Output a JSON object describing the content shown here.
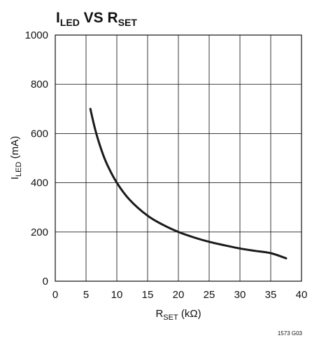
{
  "chart_data": {
    "type": "line",
    "title": {
      "main": "I",
      "main_sub": "LED",
      "mid": " VS ",
      "end": "R",
      "end_sub": "SET"
    },
    "xlabel": {
      "main": "R",
      "sub": "SET",
      "unit": " (kΩ)"
    },
    "ylabel": {
      "main": "I",
      "sub": "LED",
      "unit": " (mA)"
    },
    "xlim": [
      0,
      40
    ],
    "ylim": [
      0,
      1000
    ],
    "xticks": [
      0,
      5,
      10,
      15,
      20,
      25,
      30,
      35,
      40
    ],
    "yticks": [
      0,
      200,
      400,
      600,
      800,
      1000
    ],
    "grid": true,
    "figure_id": "1573 G03",
    "series": [
      {
        "x": [
          5.7,
          6.5,
          7.5,
          8.5,
          10,
          12,
          15,
          17.5,
          20,
          22.5,
          25,
          27.5,
          30,
          32.5,
          35,
          37.5
        ],
        "y": [
          700,
          615,
          533,
          470,
          400,
          333,
          266,
          229,
          200,
          178,
          160,
          146,
          133,
          123,
          114,
          93
        ],
        "color": "#1a1a1a"
      }
    ]
  }
}
